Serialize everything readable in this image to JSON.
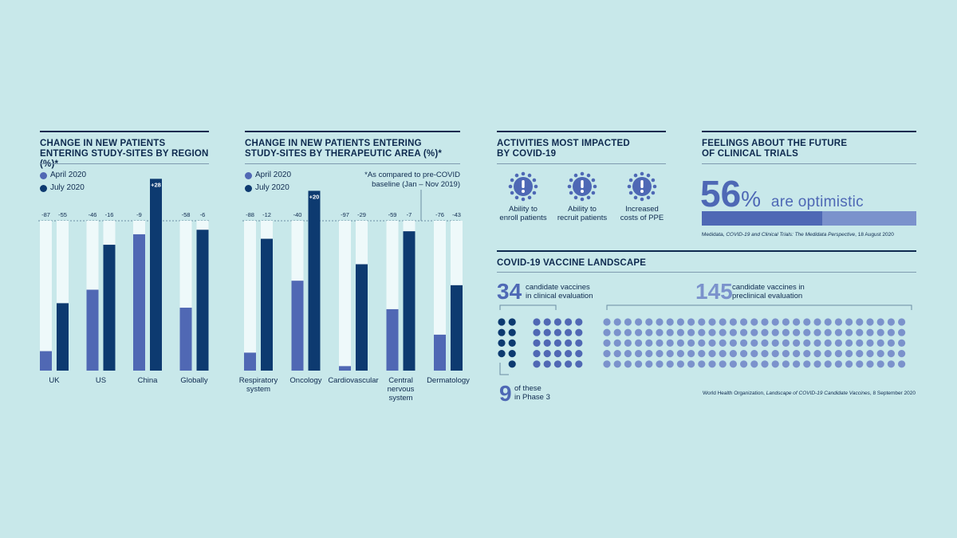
{
  "colors": {
    "april": "#5068b4",
    "july": "#0d3a70",
    "track": "#eef9fa",
    "ink": "#0e2a4f",
    "bg": "#c8e8ea",
    "light_dot": "#7b92cc"
  },
  "chart_data": [
    {
      "type": "bar",
      "title": "CHANGE IN NEW PATIENTS ENTERING STUDY-SITES BY REGION (%)*",
      "categories": [
        "UK",
        "US",
        "China",
        "Globally"
      ],
      "series": [
        {
          "name": "April 2020",
          "values": [
            -87,
            -46,
            -9,
            -58
          ]
        },
        {
          "name": "July 2020",
          "values": [
            -55,
            -16,
            28,
            -6
          ]
        }
      ],
      "data_labels": {
        "april": [
          "-87",
          "-46",
          "-9",
          "-58"
        ],
        "july": [
          "-55",
          "-16",
          "+28",
          "-6"
        ]
      },
      "ylim": [
        -100,
        28
      ],
      "legend": "top-left"
    },
    {
      "type": "bar",
      "title": "CHANGE IN NEW PATIENTS ENTERING STUDY-SITES BY THERAPEUTIC AREA (%)*",
      "categories": [
        "Respiratory system",
        "Oncology",
        "Cardiovascular",
        "Central nervous system",
        "Dermatology"
      ],
      "category_lines": [
        [
          "Respiratory",
          "system"
        ],
        [
          "Oncology"
        ],
        [
          "Cardiovascular"
        ],
        [
          "Central",
          "nervous",
          "system"
        ],
        [
          "Dermatology"
        ]
      ],
      "series": [
        {
          "name": "April 2020",
          "values": [
            -88,
            -40,
            -97,
            -59,
            -76
          ]
        },
        {
          "name": "July 2020",
          "values": [
            -12,
            20,
            -29,
            -7,
            -43
          ]
        }
      ],
      "data_labels": {
        "april": [
          "-88",
          "-40",
          "-97",
          "-59",
          "-76"
        ],
        "july": [
          "-12",
          "+20",
          "-29",
          "-7",
          "-43"
        ]
      },
      "ylim": [
        -100,
        28
      ],
      "legend": "top-left",
      "annotation": [
        "*As compared to pre-COVID",
        "baseline (Jan – Nov 2019)"
      ]
    }
  ],
  "activities": {
    "title_lines": [
      "ACTIVITIES MOST IMPACTED",
      "BY COVID-19"
    ],
    "items": [
      {
        "icon": "covid-alert-icon",
        "lines": [
          "Ability to",
          "enroll patients"
        ]
      },
      {
        "icon": "covid-alert-icon",
        "lines": [
          "Ability to",
          "recruit patients"
        ]
      },
      {
        "icon": "covid-alert-icon",
        "lines": [
          "Increased",
          "costs of PPE"
        ]
      }
    ]
  },
  "feelings": {
    "title_lines": [
      "FEELINGS ABOUT THE FUTURE",
      "OF CLINICAL TRIALS"
    ],
    "number": "56",
    "pct": "%",
    "rest": "are optimistic",
    "progress": 56,
    "cite_pre": "Medidata, ",
    "cite_em": "COVID-19 and Clinical Trials: The Medidata Perspective",
    "cite_post": ", 18 August 2020"
  },
  "vaccines": {
    "title": "COVID-19 VACCINE LANDSCAPE",
    "clinical_number": "34",
    "clinical_lines": [
      "candidate vaccines",
      "in clinical evaluation"
    ],
    "preclinical_number": "145",
    "preclinical_lines": [
      "candidate vaccines in",
      "preclinical evaluation"
    ],
    "phase3_number": "9",
    "phase3_lines": [
      "of these",
      "in Phase 3"
    ],
    "clinical_count": 34,
    "phase3_count": 9,
    "preclinical_count": 145,
    "cite_pre": "World Health Organization, ",
    "cite_em": "Landscape of COVID-19 Candidate Vaccines",
    "cite_post": ", 8 September 2020"
  }
}
